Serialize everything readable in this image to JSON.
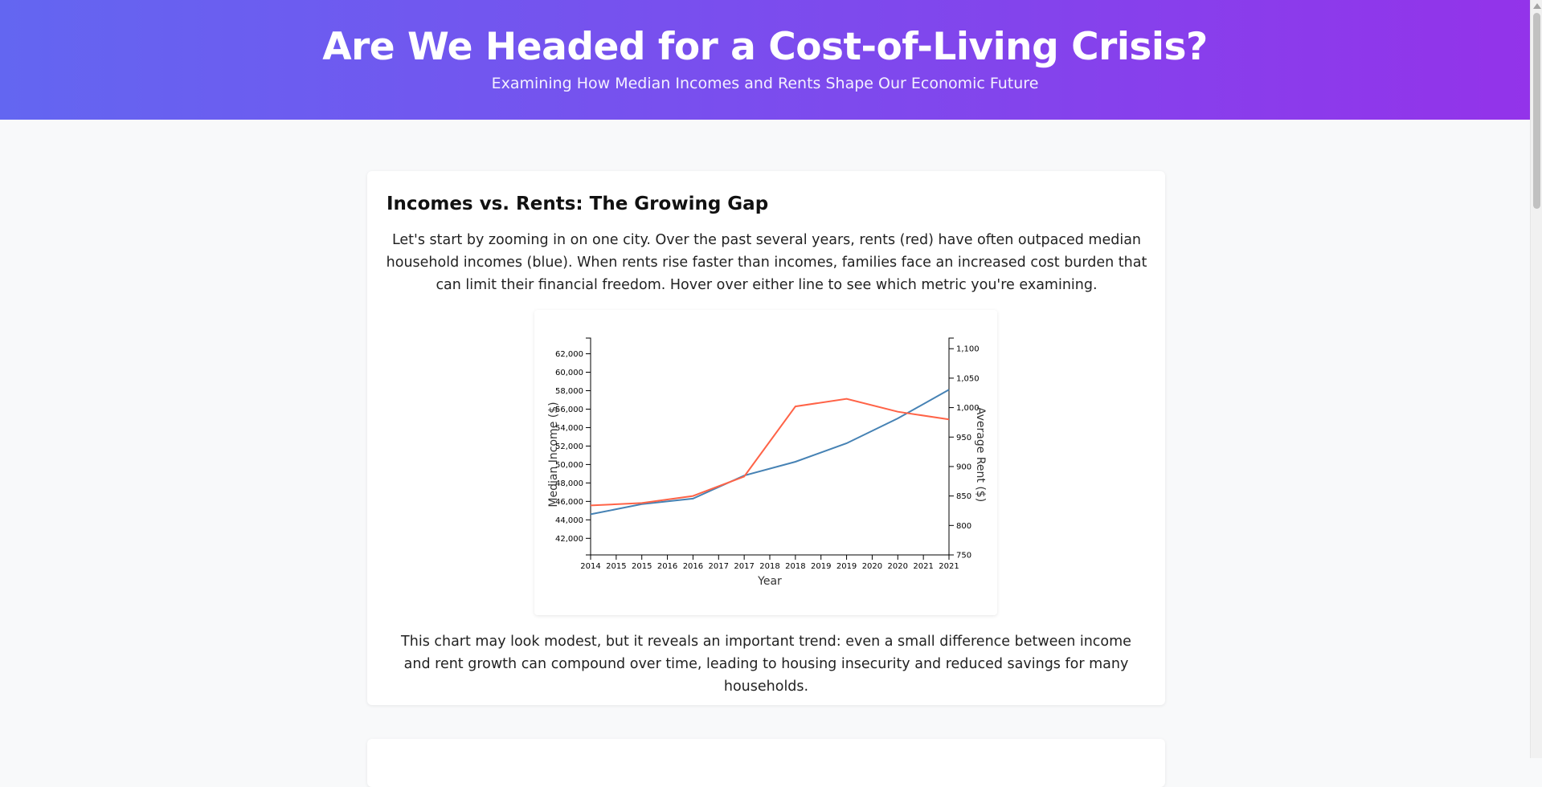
{
  "header": {
    "title": "Are We Headed for a Cost-of-Living Crisis?",
    "subtitle": "Examining How Median Incomes and Rents Shape Our Economic Future"
  },
  "section": {
    "heading": "Incomes vs. Rents: The Growing Gap",
    "intro": "Let's start by zooming in on one city. Over the past several years, rents (red) have often outpaced median household incomes (blue). When rents rise faster than incomes, families face an increased cost burden that can limit their financial freedom. Hover over either line to see which metric you're examining.",
    "outro": "This chart may look modest, but it reveals an important trend: even a small difference between income and rent growth can compound over time, leading to housing insecurity and reduced savings for many households."
  },
  "chart_data": {
    "type": "line",
    "x": [
      2014,
      2015,
      2016,
      2017,
      2018,
      2019,
      2020,
      2021
    ],
    "xlabel": "Year",
    "x_tick_labels": [
      "2014",
      "2015",
      "2015",
      "2016",
      "2016",
      "2017",
      "2017",
      "2018",
      "2018",
      "2019",
      "2019",
      "2020",
      "2020",
      "2021",
      "2021"
    ],
    "series": [
      {
        "axis": "left",
        "color": "#4682b4",
        "values": [
          44600,
          45700,
          46300,
          48800,
          50300,
          52300,
          55000,
          58100
        ]
      },
      {
        "axis": "right",
        "color": "#ff6347",
        "values": [
          834,
          838,
          850,
          883,
          1002,
          1015,
          993,
          980
        ]
      }
    ],
    "ylabel": "Median Income ($)",
    "ylim": [
      40200,
      63700
    ],
    "y_ticks": [
      "42,000",
      "44,000",
      "46,000",
      "48,000",
      "50,000",
      "52,000",
      "54,000",
      "56,000",
      "58,000",
      "60,000",
      "62,000"
    ],
    "y2label": "Average Rent ($)",
    "y2lim": [
      750,
      1118
    ],
    "y2_ticks": [
      "750",
      "800",
      "850",
      "900",
      "950",
      "1,000",
      "1,050",
      "1,100"
    ],
    "grid": false,
    "legend": "none"
  }
}
